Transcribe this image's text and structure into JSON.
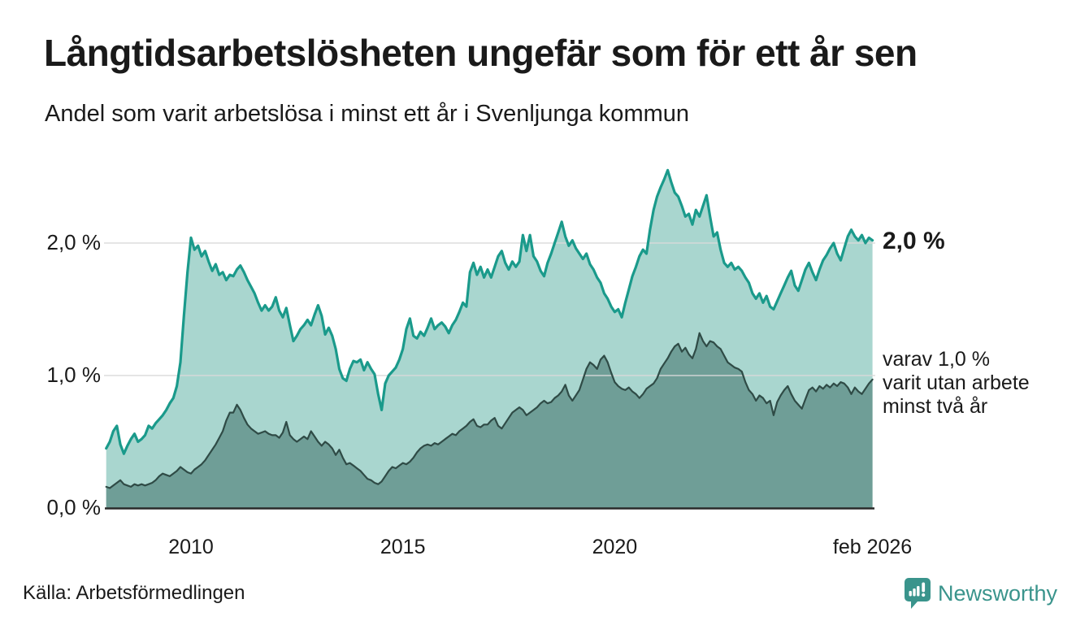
{
  "header": {
    "title": "Långtidsarbetslösheten ungefär som för ett år sen",
    "subtitle": "Andel som varit arbetslösa i minst ett år i Svenljunga kommun"
  },
  "chart_data": {
    "type": "area",
    "title": "Långtidsarbetslösheten ungefär som för ett år sen",
    "subtitle": "Andel som varit arbetslösa i minst ett år i Svenljunga kommun",
    "unit": "%",
    "grid": "horizontal",
    "ylim": [
      0,
      2.6
    ],
    "x_start": 2008.0,
    "x_step": 0.0833333,
    "x_end_label_month": "feb 2026",
    "x_ticks": [
      {
        "label": "2010",
        "year": 2010
      },
      {
        "label": "2015",
        "year": 2015
      },
      {
        "label": "2020",
        "year": 2020
      },
      {
        "label": "feb 2026",
        "year": 2026.083
      }
    ],
    "y_ticks": [
      {
        "label": "0,0 %",
        "value": 0.0
      },
      {
        "label": "1,0 %",
        "value": 1.0
      },
      {
        "label": "2,0 %",
        "value": 2.0
      }
    ],
    "series": [
      {
        "name": "Andel arbetslösa minst ett år (totalt)",
        "line_color": "#1a9a8b",
        "fill_color": "#a9d6cf",
        "end_value_label": "2,0 %",
        "values": [
          0.45,
          0.5,
          0.58,
          0.62,
          0.48,
          0.41,
          0.47,
          0.52,
          0.56,
          0.5,
          0.52,
          0.55,
          0.62,
          0.6,
          0.64,
          0.67,
          0.7,
          0.74,
          0.79,
          0.83,
          0.92,
          1.1,
          1.45,
          1.78,
          2.04,
          1.95,
          1.98,
          1.9,
          1.94,
          1.86,
          1.79,
          1.84,
          1.76,
          1.78,
          1.72,
          1.76,
          1.75,
          1.8,
          1.83,
          1.78,
          1.72,
          1.67,
          1.62,
          1.55,
          1.49,
          1.53,
          1.49,
          1.52,
          1.59,
          1.49,
          1.44,
          1.51,
          1.38,
          1.26,
          1.3,
          1.35,
          1.38,
          1.42,
          1.38,
          1.46,
          1.53,
          1.45,
          1.31,
          1.36,
          1.3,
          1.2,
          1.05,
          0.98,
          0.96,
          1.05,
          1.11,
          1.1,
          1.12,
          1.04,
          1.1,
          1.05,
          1.01,
          0.86,
          0.74,
          0.94,
          1.0,
          1.03,
          1.06,
          1.12,
          1.2,
          1.35,
          1.43,
          1.3,
          1.28,
          1.33,
          1.3,
          1.36,
          1.43,
          1.35,
          1.38,
          1.4,
          1.37,
          1.32,
          1.38,
          1.42,
          1.48,
          1.55,
          1.52,
          1.78,
          1.85,
          1.76,
          1.82,
          1.74,
          1.8,
          1.74,
          1.82,
          1.9,
          1.94,
          1.85,
          1.8,
          1.86,
          1.82,
          1.86,
          2.06,
          1.94,
          2.06,
          1.9,
          1.86,
          1.79,
          1.75,
          1.85,
          1.92,
          2.0,
          2.08,
          2.16,
          2.05,
          1.98,
          2.02,
          1.96,
          1.92,
          1.88,
          1.92,
          1.84,
          1.8,
          1.74,
          1.7,
          1.62,
          1.58,
          1.52,
          1.48,
          1.5,
          1.44,
          1.55,
          1.65,
          1.75,
          1.82,
          1.9,
          1.95,
          1.92,
          2.1,
          2.25,
          2.35,
          2.42,
          2.48,
          2.55,
          2.46,
          2.38,
          2.35,
          2.28,
          2.2,
          2.22,
          2.14,
          2.25,
          2.2,
          2.28,
          2.36,
          2.2,
          2.05,
          2.08,
          1.95,
          1.85,
          1.82,
          1.85,
          1.8,
          1.82,
          1.79,
          1.74,
          1.7,
          1.62,
          1.58,
          1.62,
          1.55,
          1.6,
          1.52,
          1.5,
          1.56,
          1.62,
          1.68,
          1.74,
          1.79,
          1.68,
          1.64,
          1.72,
          1.8,
          1.85,
          1.78,
          1.72,
          1.8,
          1.87,
          1.91,
          1.96,
          2.0,
          1.92,
          1.87,
          1.96,
          2.05,
          2.1,
          2.05,
          2.02,
          2.06,
          2.0,
          2.04,
          2.02
        ]
      },
      {
        "name": "Varav utan arbete minst två år",
        "line_color": "#2f4b46",
        "fill_color": "#6f9e97",
        "end_value_label": "varav 1,0 % varit utan arbete minst två år",
        "values": [
          0.16,
          0.15,
          0.17,
          0.19,
          0.21,
          0.18,
          0.17,
          0.16,
          0.18,
          0.17,
          0.18,
          0.17,
          0.18,
          0.19,
          0.21,
          0.24,
          0.26,
          0.25,
          0.24,
          0.26,
          0.28,
          0.31,
          0.29,
          0.27,
          0.26,
          0.29,
          0.31,
          0.33,
          0.36,
          0.4,
          0.44,
          0.48,
          0.53,
          0.58,
          0.66,
          0.72,
          0.72,
          0.78,
          0.74,
          0.68,
          0.63,
          0.6,
          0.58,
          0.56,
          0.57,
          0.58,
          0.56,
          0.55,
          0.55,
          0.53,
          0.57,
          0.65,
          0.55,
          0.52,
          0.5,
          0.52,
          0.54,
          0.52,
          0.58,
          0.54,
          0.5,
          0.47,
          0.5,
          0.48,
          0.45,
          0.4,
          0.44,
          0.38,
          0.33,
          0.34,
          0.32,
          0.3,
          0.28,
          0.25,
          0.22,
          0.21,
          0.19,
          0.18,
          0.2,
          0.24,
          0.28,
          0.31,
          0.3,
          0.32,
          0.34,
          0.33,
          0.35,
          0.38,
          0.42,
          0.45,
          0.47,
          0.48,
          0.47,
          0.49,
          0.48,
          0.5,
          0.52,
          0.54,
          0.56,
          0.55,
          0.58,
          0.6,
          0.62,
          0.65,
          0.67,
          0.62,
          0.61,
          0.63,
          0.63,
          0.66,
          0.68,
          0.62,
          0.6,
          0.64,
          0.68,
          0.72,
          0.74,
          0.76,
          0.74,
          0.7,
          0.72,
          0.74,
          0.76,
          0.79,
          0.81,
          0.79,
          0.8,
          0.83,
          0.85,
          0.88,
          0.93,
          0.85,
          0.81,
          0.85,
          0.89,
          0.97,
          1.05,
          1.1,
          1.08,
          1.05,
          1.12,
          1.15,
          1.1,
          1.02,
          0.95,
          0.92,
          0.9,
          0.89,
          0.91,
          0.88,
          0.86,
          0.83,
          0.86,
          0.9,
          0.92,
          0.94,
          0.98,
          1.05,
          1.09,
          1.13,
          1.18,
          1.22,
          1.24,
          1.18,
          1.21,
          1.16,
          1.13,
          1.2,
          1.32,
          1.26,
          1.22,
          1.26,
          1.25,
          1.22,
          1.2,
          1.15,
          1.1,
          1.08,
          1.06,
          1.05,
          1.03,
          0.95,
          0.89,
          0.86,
          0.81,
          0.85,
          0.83,
          0.79,
          0.81,
          0.7,
          0.8,
          0.85,
          0.89,
          0.92,
          0.86,
          0.81,
          0.78,
          0.75,
          0.82,
          0.89,
          0.91,
          0.88,
          0.92,
          0.9,
          0.93,
          0.91,
          0.94,
          0.92,
          0.95,
          0.94,
          0.91,
          0.86,
          0.91,
          0.88,
          0.86,
          0.9,
          0.94,
          0.97
        ]
      }
    ],
    "annotations": {
      "end_label": "2,0 %",
      "sub_line_1": "varav 1,0 %",
      "sub_line_2": "varit utan arbete",
      "sub_line_3": "minst två år"
    },
    "colors": {
      "grid": "#d9d9d9",
      "axis": "#2a2a2a"
    }
  },
  "footer": {
    "source": "Källa: Arbetsförmedlingen",
    "logo_text": "Newsworthy",
    "logo_color": "#3a948c"
  }
}
